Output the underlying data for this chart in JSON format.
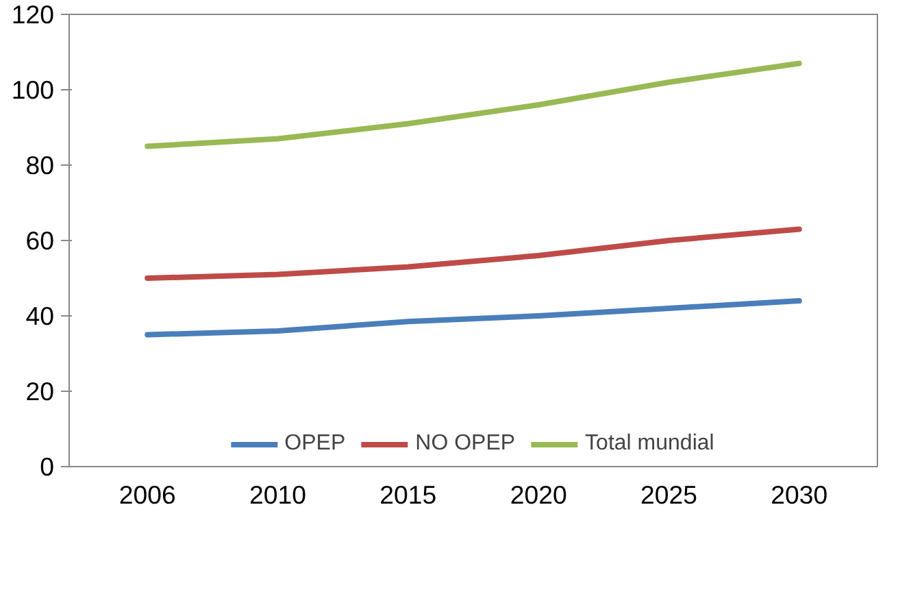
{
  "chart_data": {
    "type": "line",
    "categories": [
      "2006",
      "2010",
      "2015",
      "2020",
      "2025",
      "2030"
    ],
    "series": [
      {
        "name": "OPEP",
        "color": "#4a7ebb",
        "values": [
          35,
          36,
          38.5,
          40,
          42,
          44
        ]
      },
      {
        "name": "NO OPEP",
        "color": "#be4b48",
        "values": [
          50,
          51,
          53,
          56,
          60,
          63
        ]
      },
      {
        "name": "Total mundial",
        "color": "#98b954",
        "values": [
          85,
          87,
          91,
          96,
          102,
          107
        ]
      }
    ],
    "ylim": [
      0,
      120
    ],
    "yticks": [
      0,
      20,
      40,
      60,
      80,
      100,
      120
    ],
    "grid": false,
    "legend": "bottom",
    "marker": "none",
    "line_style": "solid"
  }
}
